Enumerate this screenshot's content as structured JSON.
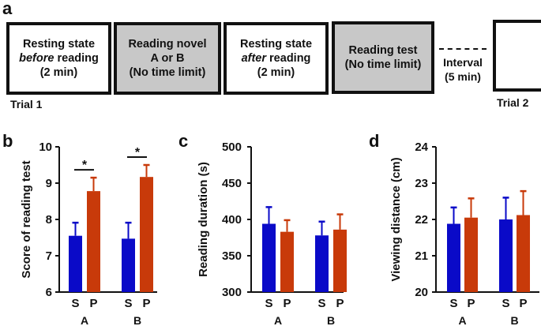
{
  "panel_a": {
    "letter": "a",
    "boxes": [
      {
        "lines": [
          "Resting state",
          "before reading",
          "(2 min)"
        ],
        "italic_word": "before",
        "style": "white"
      },
      {
        "lines": [
          "Reading novel",
          "A or B",
          "(No time limit)"
        ],
        "style": "gray"
      },
      {
        "lines": [
          "Resting state",
          "after reading",
          "(2 min)"
        ],
        "italic_word": "after",
        "style": "white"
      },
      {
        "lines": [
          "Reading test",
          "(No time limit)"
        ],
        "style": "gray"
      },
      {
        "lines": [],
        "style": "white"
      }
    ],
    "interval": {
      "line1": "Interval",
      "line2": "(5 min)"
    },
    "trial1": "Trial 1",
    "trial2": "Trial 2"
  },
  "colors": {
    "S": "#0a0ac8",
    "P": "#c83a0a"
  },
  "chart_data": [
    {
      "panel": "b",
      "type": "bar",
      "ylabel": "Score of reading test",
      "ylim": [
        6,
        10
      ],
      "yticks": [
        6,
        7,
        8,
        9,
        10
      ],
      "groups": [
        "A",
        "B"
      ],
      "bar_labels": [
        "S",
        "P"
      ],
      "series": [
        {
          "name": "S",
          "values": [
            7.55,
            7.47
          ],
          "errors": [
            0.36,
            0.44
          ]
        },
        {
          "name": "P",
          "values": [
            8.78,
            9.17
          ],
          "errors": [
            0.37,
            0.33
          ]
        }
      ],
      "annotations": [
        {
          "group": "A",
          "text": "*"
        },
        {
          "group": "B",
          "text": "*"
        }
      ]
    },
    {
      "panel": "c",
      "type": "bar",
      "ylabel": "Reading duration (s)",
      "ylim": [
        300,
        500
      ],
      "yticks": [
        300,
        350,
        400,
        450,
        500
      ],
      "groups": [
        "A",
        "B"
      ],
      "bar_labels": [
        "S",
        "P"
      ],
      "series": [
        {
          "name": "S",
          "values": [
            394,
            378
          ],
          "errors": [
            23,
            19
          ]
        },
        {
          "name": "P",
          "values": [
            383,
            386
          ],
          "errors": [
            16,
            21
          ]
        }
      ],
      "annotations": []
    },
    {
      "panel": "d",
      "type": "bar",
      "ylabel": "Viewing distance (cm)",
      "ylim": [
        20,
        24
      ],
      "yticks": [
        20,
        21,
        22,
        23,
        24
      ],
      "groups": [
        "A",
        "B"
      ],
      "bar_labels": [
        "S",
        "P"
      ],
      "series": [
        {
          "name": "S",
          "values": [
            21.88,
            22.0
          ],
          "errors": [
            0.45,
            0.6
          ]
        },
        {
          "name": "P",
          "values": [
            22.05,
            22.12
          ],
          "errors": [
            0.53,
            0.66
          ]
        }
      ],
      "annotations": []
    }
  ]
}
